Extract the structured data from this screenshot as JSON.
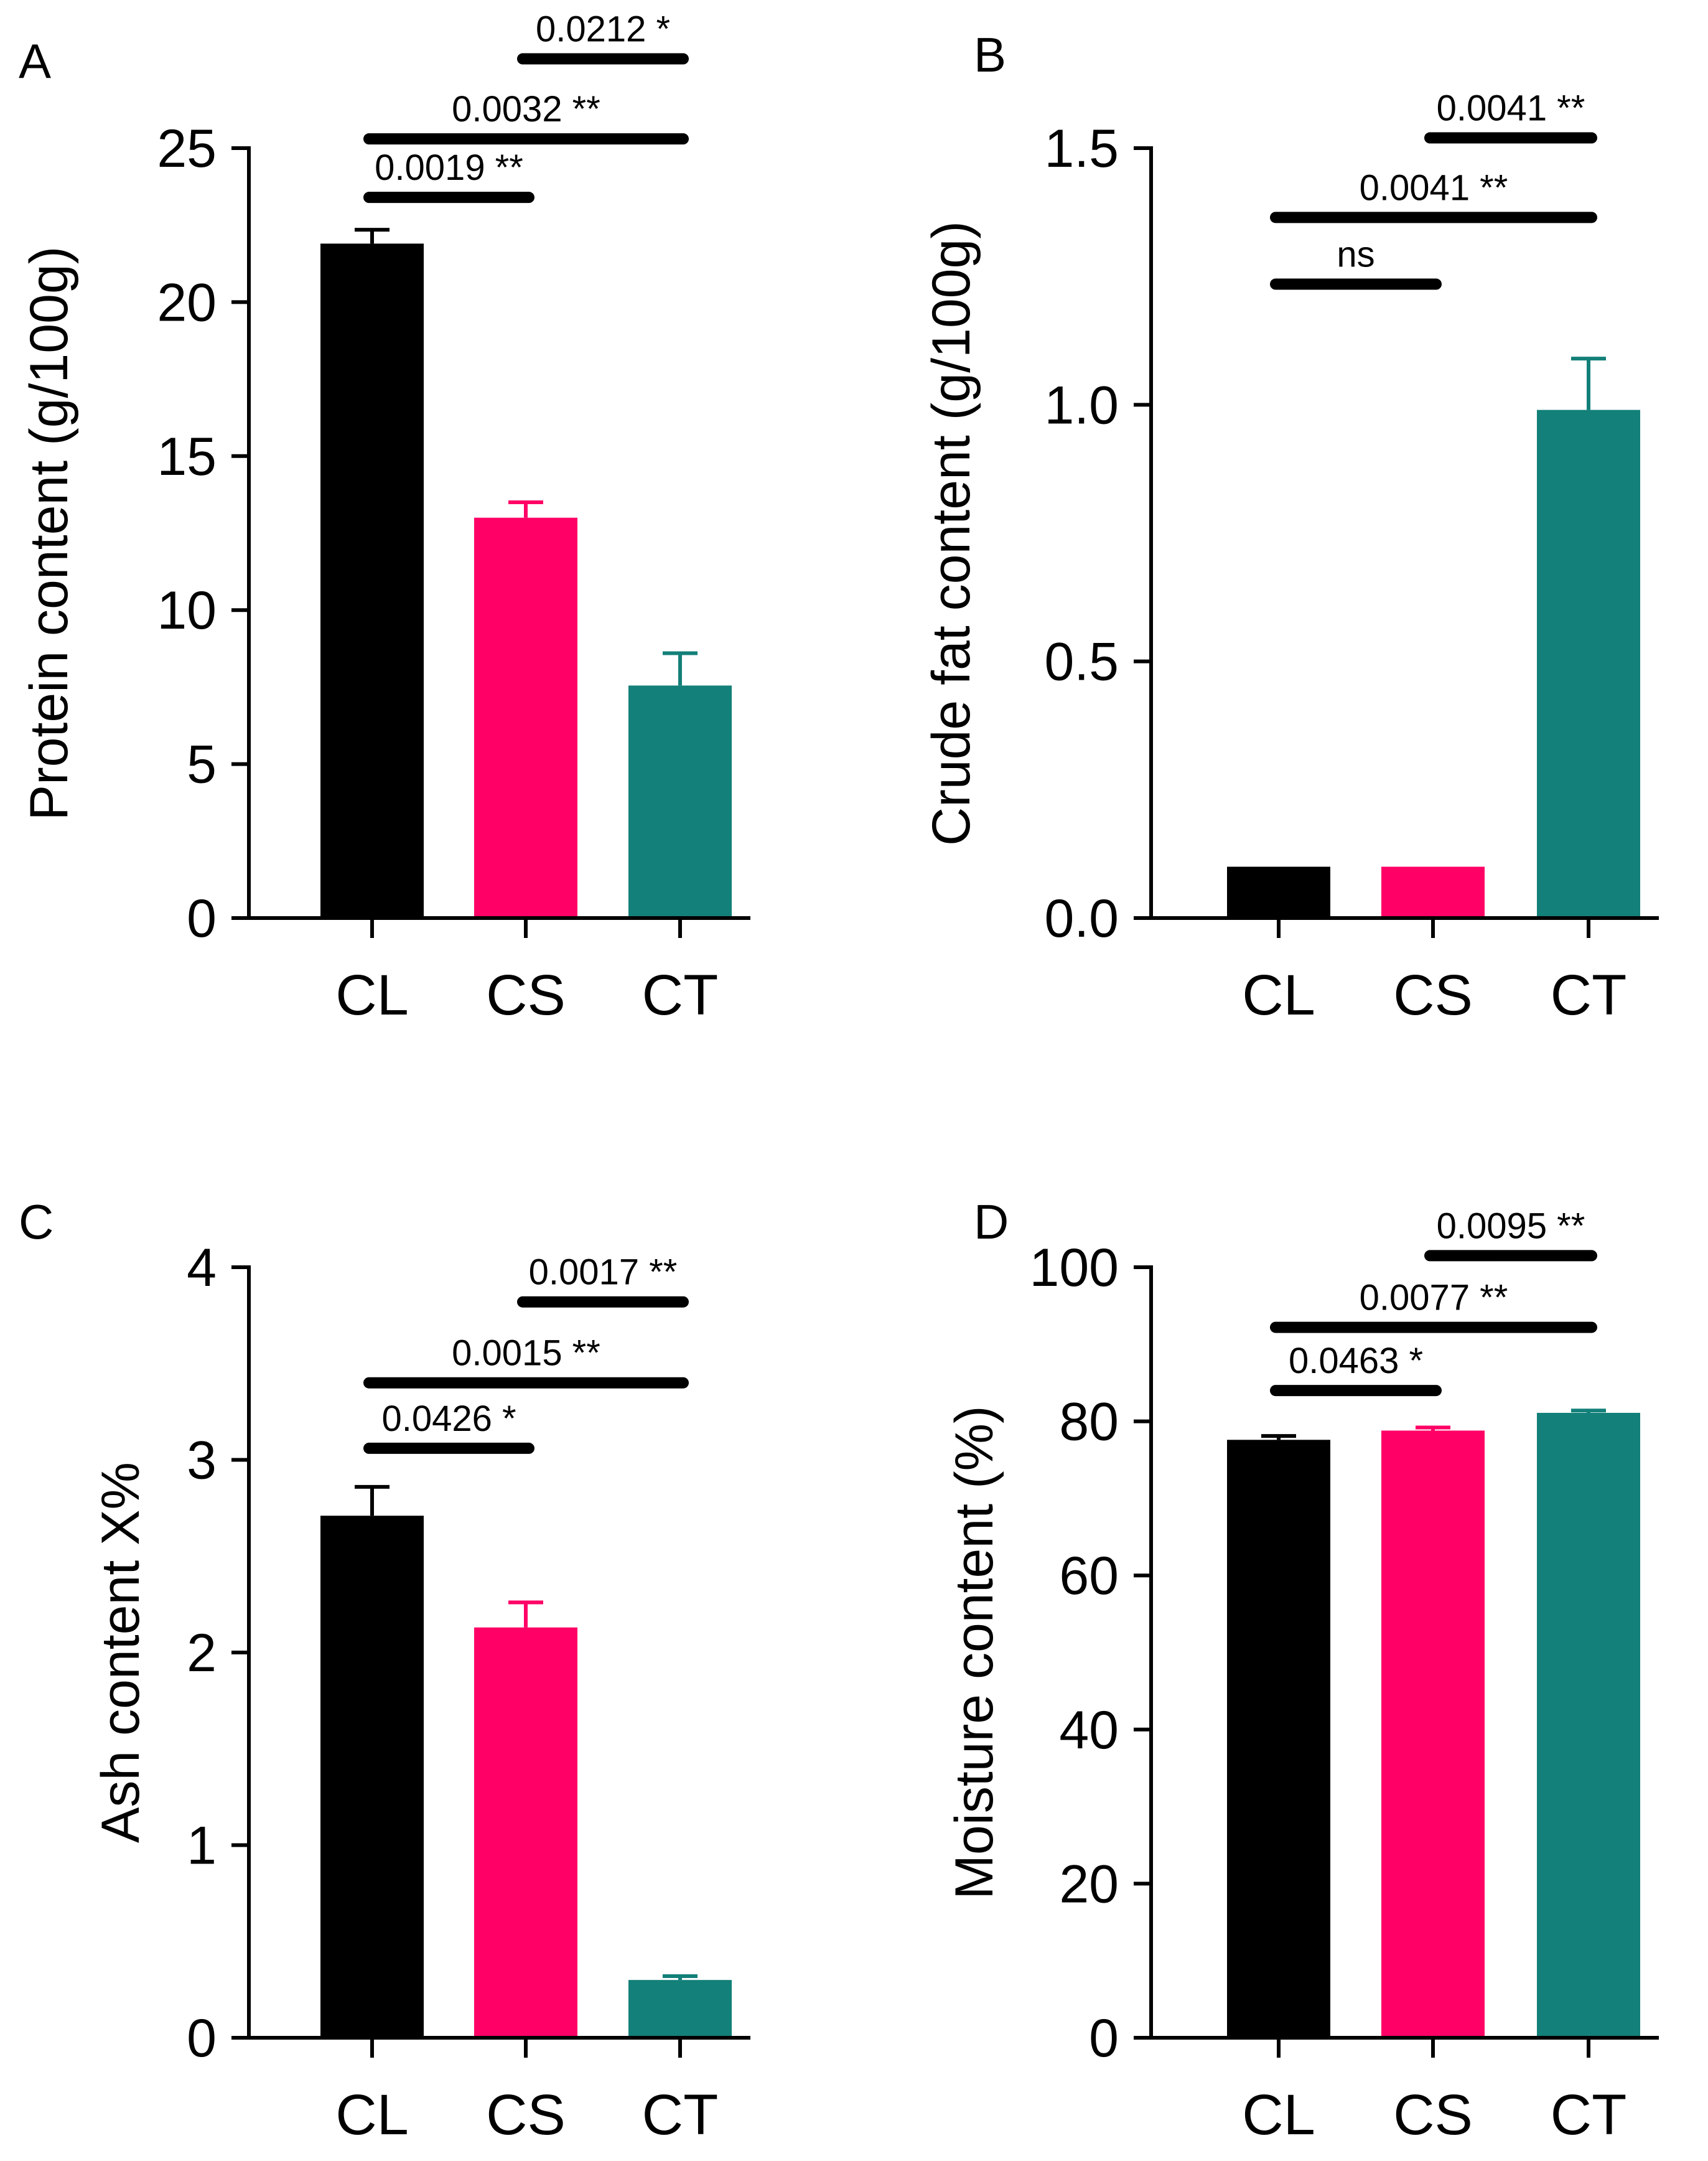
{
  "figure": {
    "colors": {
      "CL": "#000000",
      "CS": "#ff0066",
      "CT": "#138079"
    }
  },
  "chart_data": [
    {
      "panel": "A",
      "type": "bar",
      "categories": [
        "CL",
        "CS",
        "CT"
      ],
      "values": [
        21.9,
        13.0,
        7.55
      ],
      "errors": [
        0.45,
        0.5,
        1.05
      ],
      "ylabel": "Protein content (g/100g)",
      "ylim": [
        0,
        25
      ],
      "yticks": [
        0,
        5,
        10,
        15,
        20,
        25
      ],
      "ytick_labels": [
        "0",
        "5",
        "10",
        "15",
        "20",
        "25"
      ],
      "significance": [
        {
          "from": "CL",
          "to": "CS",
          "label": "0.0019 **",
          "y": 23.4
        },
        {
          "from": "CL",
          "to": "CT",
          "label": "0.0032 **",
          "y": 25.3
        },
        {
          "from": "CS",
          "to": "CT",
          "label": "0.0212 *",
          "y": 27.9
        }
      ]
    },
    {
      "panel": "B",
      "type": "bar",
      "categories": [
        "CL",
        "CS",
        "CT"
      ],
      "values": [
        0.1,
        0.1,
        0.99
      ],
      "errors": [
        0.0,
        0.0,
        0.1
      ],
      "ylabel": "Crude fat  content (g/100g)",
      "ylim": [
        0,
        1.5
      ],
      "yticks": [
        0,
        0.5,
        1.0,
        1.5
      ],
      "ytick_labels": [
        "0.0",
        "0.5",
        "1.0",
        "1.5"
      ],
      "significance": [
        {
          "from": "CL",
          "to": "CS",
          "label": "ns",
          "y": 1.235
        },
        {
          "from": "CL",
          "to": "CT",
          "label": "0.0041 **",
          "y": 1.365
        },
        {
          "from": "CS",
          "to": "CT",
          "label": "0.0041 **",
          "y": 1.52
        }
      ]
    },
    {
      "panel": "C",
      "type": "bar",
      "categories": [
        "CL",
        "CS",
        "CT"
      ],
      "values": [
        2.71,
        2.13,
        0.3
      ],
      "errors": [
        0.15,
        0.13,
        0.02
      ],
      "ylabel": "Ash content X%",
      "ylim": [
        0,
        4
      ],
      "yticks": [
        0,
        1,
        2,
        3,
        4
      ],
      "ytick_labels": [
        "0",
        "1",
        "2",
        "3",
        "4"
      ],
      "significance": [
        {
          "from": "CL",
          "to": "CS",
          "label": "0.0426 *",
          "y": 3.06
        },
        {
          "from": "CL",
          "to": "CT",
          "label": "0.0015 **",
          "y": 3.4
        },
        {
          "from": "CS",
          "to": "CT",
          "label": "0.0017 **",
          "y": 3.82
        }
      ]
    },
    {
      "panel": "D",
      "type": "bar",
      "categories": [
        "CL",
        "CS",
        "CT"
      ],
      "values": [
        77.6,
        78.8,
        81.1
      ],
      "errors": [
        0.5,
        0.4,
        0.3
      ],
      "ylabel": "Moisture content (%)",
      "ylim": [
        0,
        100
      ],
      "yticks": [
        0,
        20,
        40,
        60,
        80,
        100
      ],
      "ytick_labels": [
        "0",
        "20",
        "40",
        "60",
        "80",
        "100"
      ],
      "significance": [
        {
          "from": "CL",
          "to": "CS",
          "label": "0.0463 *",
          "y": 84
        },
        {
          "from": "CL",
          "to": "CT",
          "label": "0.0077 **",
          "y": 92.2
        },
        {
          "from": "CS",
          "to": "CT",
          "label": "0.0095 **",
          "y": 101.5
        }
      ]
    }
  ]
}
